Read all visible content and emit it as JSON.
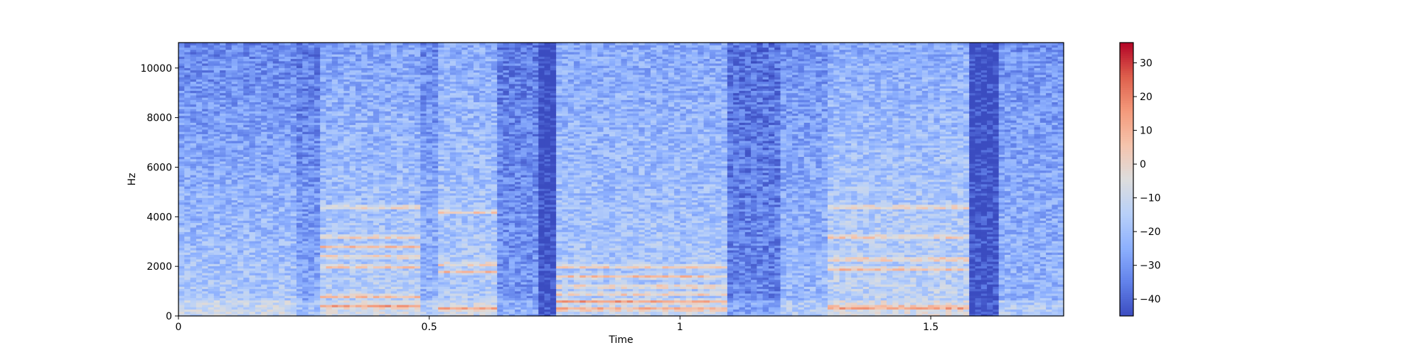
{
  "chart_data": {
    "type": "heatmap",
    "title": "",
    "xlabel": "Time",
    "ylabel": "Hz",
    "xlim": [
      0,
      1.765
    ],
    "ylim": [
      0,
      11025
    ],
    "x_ticks": [
      {
        "value": 0,
        "label": "0"
      },
      {
        "value": 0.5,
        "label": "0.5"
      },
      {
        "value": 1,
        "label": "1"
      },
      {
        "value": 1.5,
        "label": "1.5"
      }
    ],
    "y_ticks": [
      {
        "value": 0,
        "label": "0"
      },
      {
        "value": 2000,
        "label": "2000"
      },
      {
        "value": 4000,
        "label": "4000"
      },
      {
        "value": 6000,
        "label": "6000"
      },
      {
        "value": 8000,
        "label": "8000"
      },
      {
        "value": 10000,
        "label": "10000"
      }
    ],
    "colorbar": {
      "colormap": "coolwarm",
      "range": [
        -45,
        36
      ],
      "ticks": [
        {
          "value": 30,
          "label": "30"
        },
        {
          "value": 20,
          "label": "20"
        },
        {
          "value": 10,
          "label": "10"
        },
        {
          "value": 0,
          "label": "0"
        },
        {
          "value": -10,
          "label": "−10"
        },
        {
          "value": -20,
          "label": "−20"
        },
        {
          "value": -30,
          "label": "−30"
        },
        {
          "value": -40,
          "label": "−40"
        }
      ]
    },
    "segments": [
      {
        "t0": 0.0,
        "t1": 0.24,
        "energy": -16,
        "decay": 0.8,
        "harmonics": []
      },
      {
        "t0": 0.24,
        "t1": 0.28,
        "energy": -25,
        "decay": 0.5,
        "harmonics": []
      },
      {
        "t0": 0.28,
        "t1": 0.48,
        "energy": -14,
        "decay": 0.6,
        "harmonics": [
          400,
          800,
          2000,
          2400,
          2800,
          3200,
          4400
        ]
      },
      {
        "t0": 0.48,
        "t1": 0.52,
        "energy": -22,
        "decay": 0.5,
        "harmonics": []
      },
      {
        "t0": 0.52,
        "t1": 0.63,
        "energy": -15,
        "decay": 0.45,
        "harmonics": [
          300,
          1800,
          2100,
          4200
        ]
      },
      {
        "t0": 0.63,
        "t1": 0.72,
        "energy": -30,
        "decay": 0.25,
        "harmonics": []
      },
      {
        "t0": 0.72,
        "t1": 0.75,
        "energy": -44,
        "decay": 0.1,
        "harmonics": []
      },
      {
        "t0": 0.75,
        "t1": 1.1,
        "energy": -16,
        "decay": 0.45,
        "harmonics": [
          300,
          600,
          900,
          1200,
          1600,
          2000
        ]
      },
      {
        "t0": 1.1,
        "t1": 1.2,
        "energy": -33,
        "decay": 0.2,
        "harmonics": []
      },
      {
        "t0": 1.2,
        "t1": 1.3,
        "energy": -21,
        "decay": 0.45,
        "harmonics": []
      },
      {
        "t0": 1.3,
        "t1": 1.58,
        "energy": -12,
        "decay": 0.6,
        "harmonics": [
          350,
          1900,
          2300,
          3200,
          4400
        ]
      },
      {
        "t0": 1.58,
        "t1": 1.63,
        "energy": -43,
        "decay": 0.1,
        "harmonics": []
      },
      {
        "t0": 1.63,
        "t1": 1.765,
        "energy": -22,
        "decay": 0.4,
        "harmonics": []
      }
    ]
  }
}
